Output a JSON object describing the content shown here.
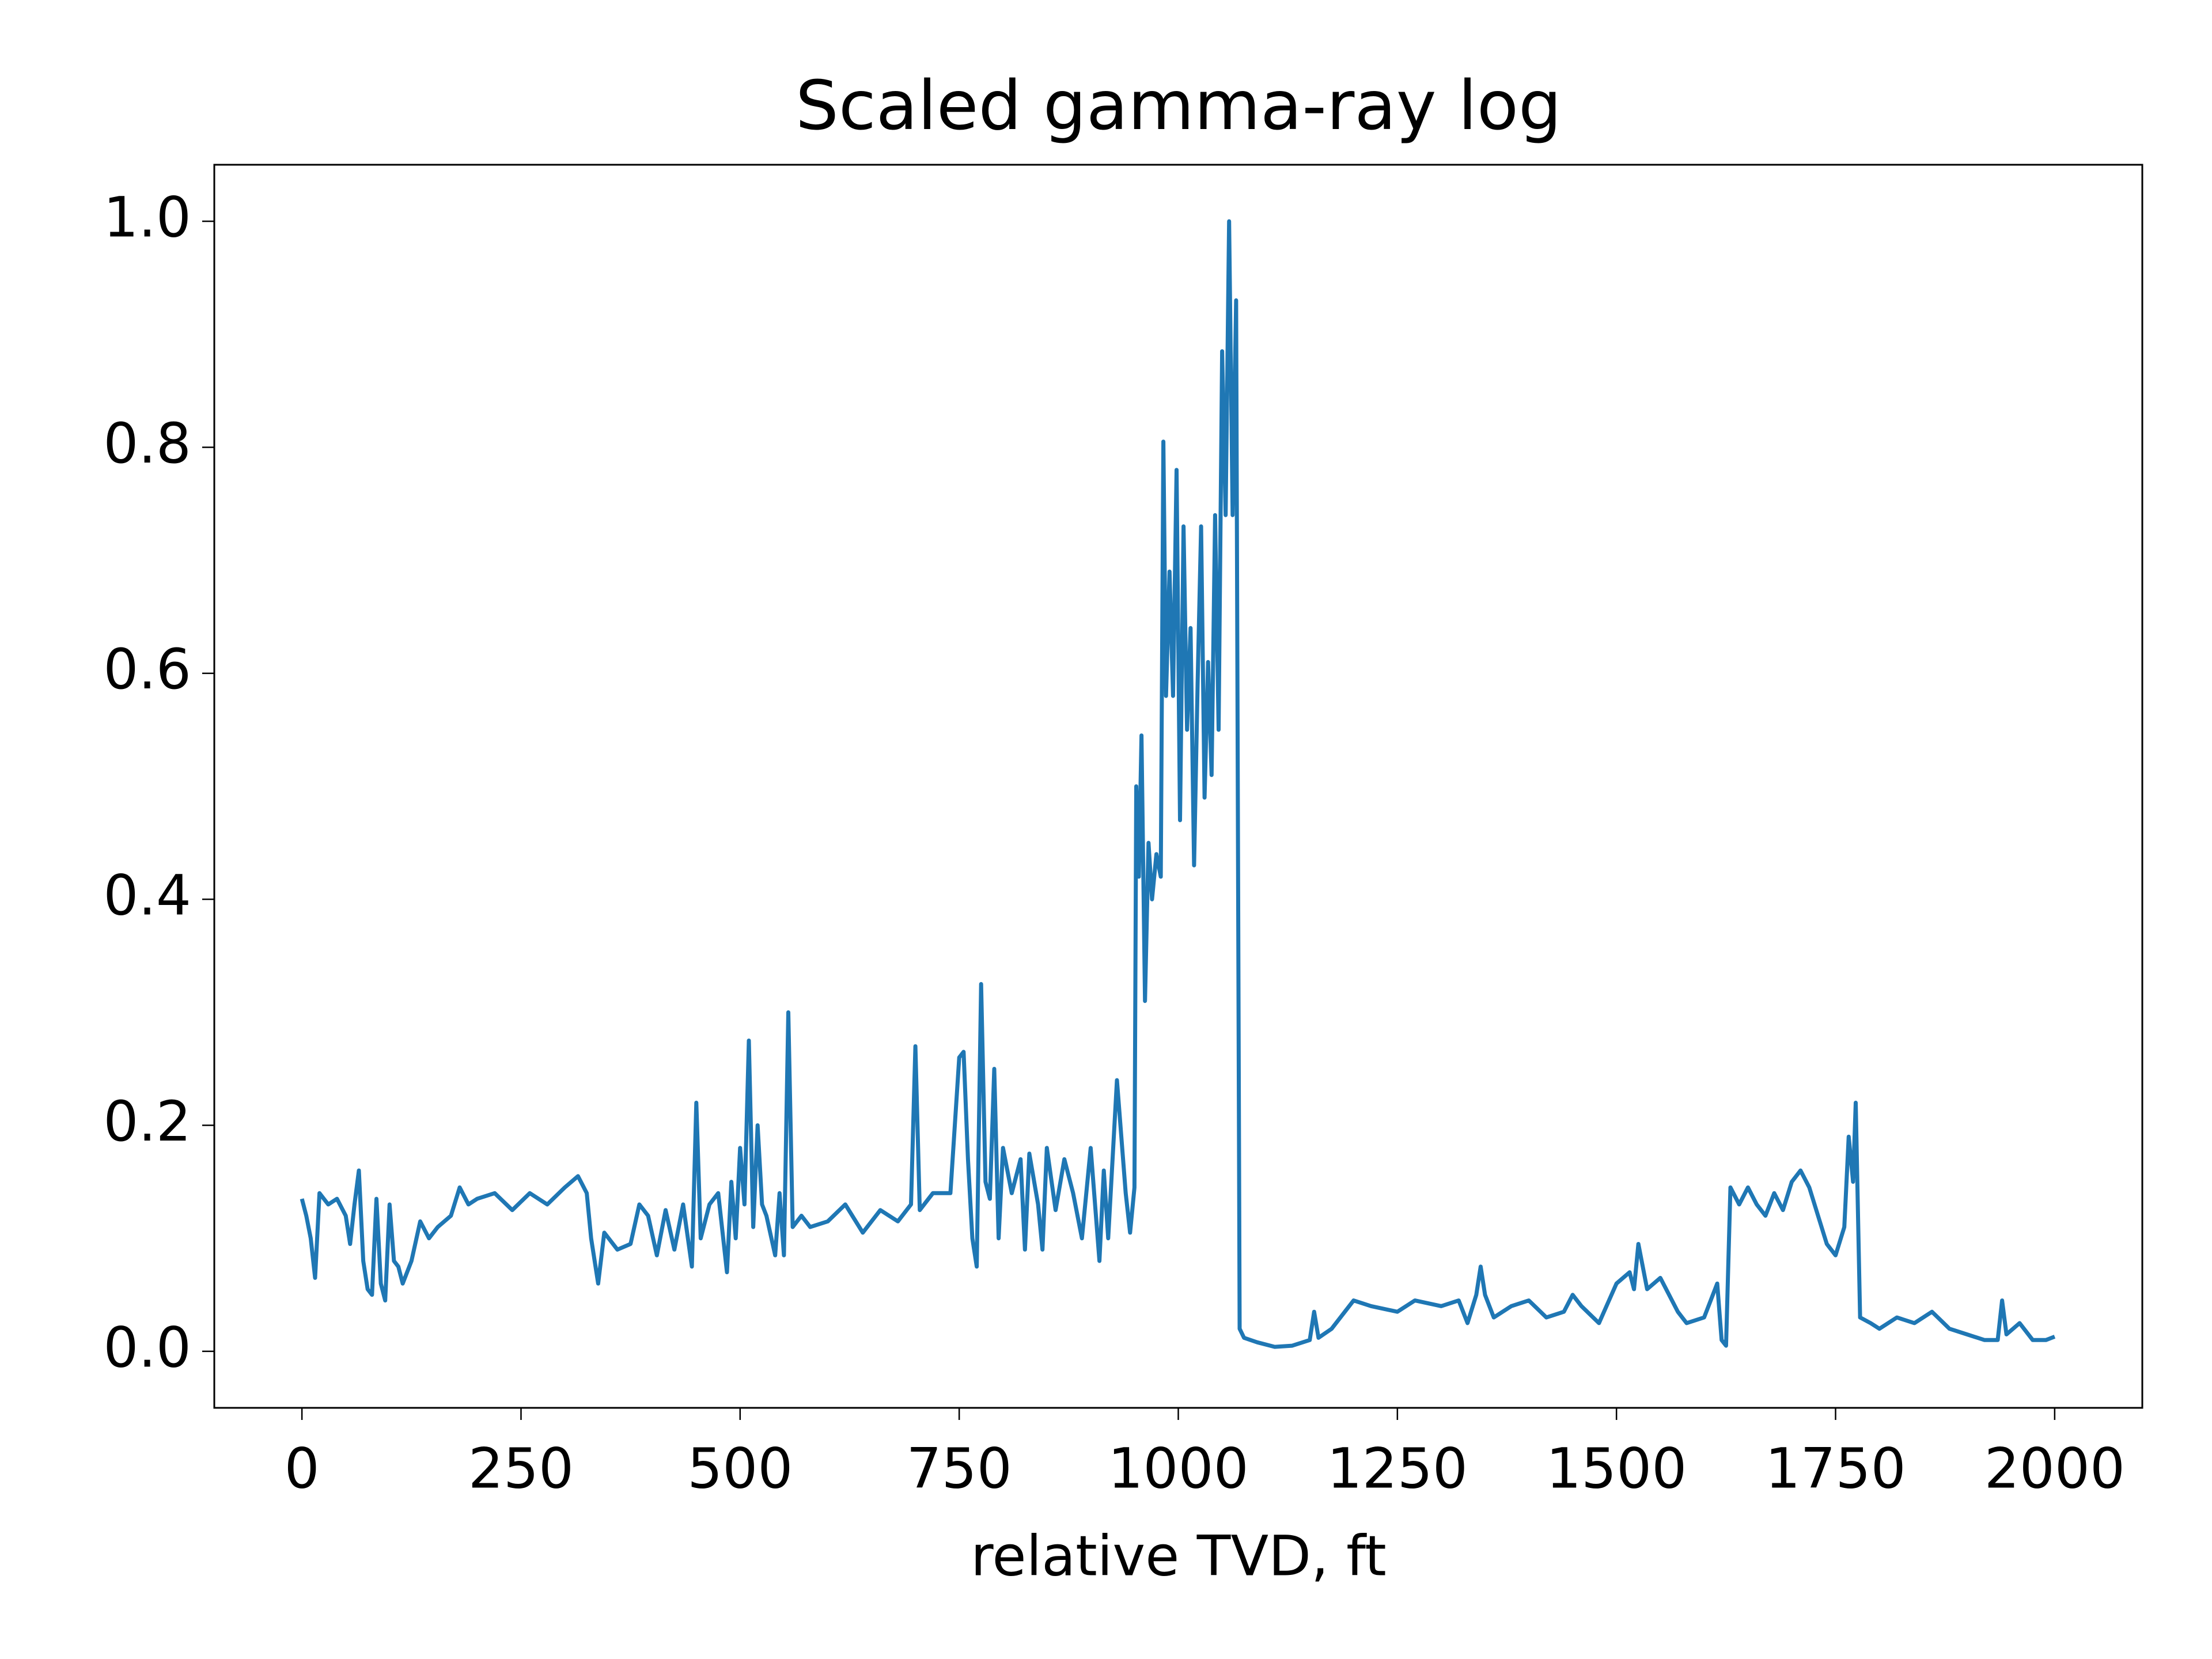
{
  "chart_data": {
    "type": "line",
    "title": "Scaled gamma-ray log",
    "x_label": "relative TVD, ft",
    "color": "#1f77b4",
    "x": [
      0,
      5,
      10,
      15,
      20,
      30,
      40,
      50,
      55,
      60,
      65,
      70,
      75,
      80,
      85,
      90,
      95,
      100,
      105,
      110,
      115,
      125,
      135,
      145,
      155,
      170,
      180,
      190,
      200,
      220,
      240,
      260,
      280,
      300,
      315,
      325,
      330,
      338,
      345,
      360,
      375,
      385,
      395,
      405,
      415,
      425,
      435,
      445,
      450,
      455,
      465,
      475,
      485,
      490,
      495,
      500,
      505,
      510,
      515,
      520,
      525,
      530,
      540,
      545,
      550,
      555,
      560,
      570,
      580,
      600,
      620,
      640,
      660,
      680,
      695,
      700,
      705,
      720,
      740,
      750,
      755,
      760,
      765,
      770,
      775,
      780,
      785,
      790,
      795,
      800,
      810,
      820,
      825,
      830,
      840,
      845,
      850,
      860,
      870,
      880,
      890,
      900,
      910,
      915,
      920,
      930,
      940,
      945,
      950,
      952,
      955,
      958,
      962,
      966,
      970,
      975,
      980,
      983,
      986,
      990,
      994,
      998,
      1002,
      1006,
      1010,
      1014,
      1018,
      1022,
      1026,
      1030,
      1034,
      1038,
      1042,
      1046,
      1050,
      1054,
      1058,
      1062,
      1066,
      1070,
      1075,
      1090,
      1110,
      1130,
      1150,
      1155,
      1160,
      1175,
      1190,
      1200,
      1220,
      1250,
      1270,
      1300,
      1320,
      1330,
      1340,
      1345,
      1350,
      1360,
      1380,
      1400,
      1420,
      1440,
      1450,
      1460,
      1480,
      1500,
      1515,
      1520,
      1525,
      1535,
      1550,
      1570,
      1580,
      1600,
      1615,
      1620,
      1625,
      1630,
      1640,
      1650,
      1660,
      1670,
      1680,
      1690,
      1700,
      1710,
      1720,
      1730,
      1740,
      1750,
      1760,
      1765,
      1770,
      1773,
      1778,
      1790,
      1800,
      1820,
      1840,
      1860,
      1880,
      1900,
      1920,
      1935,
      1940,
      1945,
      1960,
      1975,
      1990,
      2000
    ],
    "values": [
      0.135,
      0.12,
      0.1,
      0.065,
      0.14,
      0.13,
      0.135,
      0.12,
      0.095,
      0.13,
      0.16,
      0.08,
      0.055,
      0.05,
      0.135,
      0.06,
      0.045,
      0.13,
      0.08,
      0.075,
      0.06,
      0.08,
      0.115,
      0.1,
      0.11,
      0.12,
      0.145,
      0.13,
      0.135,
      0.14,
      0.125,
      0.14,
      0.13,
      0.145,
      0.155,
      0.14,
      0.1,
      0.06,
      0.105,
      0.09,
      0.095,
      0.13,
      0.12,
      0.085,
      0.125,
      0.09,
      0.13,
      0.075,
      0.22,
      0.1,
      0.13,
      0.14,
      0.07,
      0.15,
      0.1,
      0.18,
      0.13,
      0.275,
      0.11,
      0.2,
      0.13,
      0.12,
      0.085,
      0.14,
      0.085,
      0.3,
      0.11,
      0.12,
      0.11,
      0.115,
      0.13,
      0.105,
      0.125,
      0.115,
      0.13,
      0.27,
      0.125,
      0.14,
      0.14,
      0.26,
      0.265,
      0.17,
      0.1,
      0.075,
      0.325,
      0.15,
      0.135,
      0.25,
      0.1,
      0.18,
      0.14,
      0.17,
      0.09,
      0.175,
      0.13,
      0.09,
      0.18,
      0.125,
      0.17,
      0.14,
      0.1,
      0.18,
      0.08,
      0.16,
      0.1,
      0.24,
      0.14,
      0.105,
      0.145,
      0.5,
      0.42,
      0.545,
      0.31,
      0.45,
      0.4,
      0.44,
      0.42,
      0.805,
      0.58,
      0.69,
      0.58,
      0.78,
      0.47,
      0.73,
      0.55,
      0.64,
      0.43,
      0.59,
      0.73,
      0.49,
      0.61,
      0.51,
      0.74,
      0.55,
      0.885,
      0.74,
      1.0,
      0.74,
      0.93,
      0.02,
      0.012,
      0.008,
      0.004,
      0.005,
      0.01,
      0.035,
      0.012,
      0.02,
      0.035,
      0.045,
      0.04,
      0.035,
      0.045,
      0.04,
      0.045,
      0.025,
      0.05,
      0.075,
      0.05,
      0.03,
      0.04,
      0.045,
      0.03,
      0.035,
      0.05,
      0.04,
      0.025,
      0.06,
      0.07,
      0.055,
      0.095,
      0.055,
      0.065,
      0.035,
      0.025,
      0.03,
      0.06,
      0.01,
      0.005,
      0.145,
      0.13,
      0.145,
      0.13,
      0.12,
      0.14,
      0.125,
      0.15,
      0.16,
      0.145,
      0.12,
      0.095,
      0.085,
      0.11,
      0.19,
      0.15,
      0.22,
      0.03,
      0.025,
      0.02,
      0.03,
      0.025,
      0.035,
      0.02,
      0.015,
      0.01,
      0.01,
      0.045,
      0.015,
      0.025,
      0.01,
      0.01,
      0.013
    ],
    "xlim": [
      -100,
      2100
    ],
    "xticks": [
      0,
      250,
      500,
      750,
      1000,
      1250,
      1500,
      1750,
      2000
    ],
    "ylim": [
      -0.05,
      1.05
    ],
    "yticks": [
      {
        "value": 0,
        "label": "0.0"
      },
      0.2,
      0.4,
      0.6,
      0.8,
      {
        "value": 1,
        "label": "1.0"
      }
    ]
  }
}
